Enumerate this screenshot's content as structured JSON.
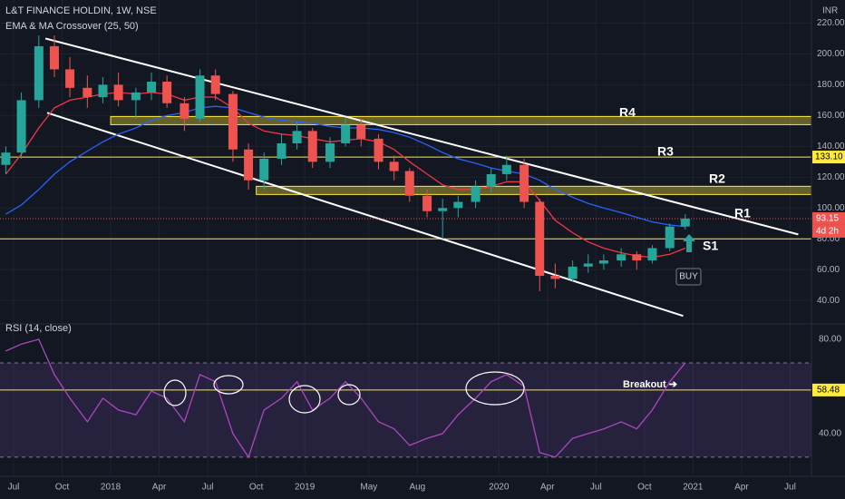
{
  "chart_data": {
    "type": "candlestick",
    "title": "L&T FINANCE HOLDIN, 1W, NSE",
    "subtitle": "EMA & MA Crossover (25, 50)",
    "currency": "INR",
    "xlim": [
      2017.43,
      2021.61
    ],
    "xticks": [
      {
        "value": 2017.5,
        "label": "Jul"
      },
      {
        "value": 2017.75,
        "label": "Oct"
      },
      {
        "value": 2018.0,
        "label": "2018"
      },
      {
        "value": 2018.25,
        "label": "Apr"
      },
      {
        "value": 2018.5,
        "label": "Jul"
      },
      {
        "value": 2018.75,
        "label": "Oct"
      },
      {
        "value": 2019.0,
        "label": "2019"
      },
      {
        "value": 2019.33,
        "label": "May"
      },
      {
        "value": 2019.58,
        "label": "Aug"
      },
      {
        "value": 2020.0,
        "label": "2020"
      },
      {
        "value": 2020.25,
        "label": "Apr"
      },
      {
        "value": 2020.5,
        "label": "Jul"
      },
      {
        "value": 2020.75,
        "label": "Oct"
      },
      {
        "value": 2021.0,
        "label": "2021"
      },
      {
        "value": 2021.25,
        "label": "Apr"
      },
      {
        "value": 2021.5,
        "label": "Jul"
      }
    ],
    "ylim": [
      26,
      235
    ],
    "yticks": [
      {
        "value": 40,
        "label": "40.00"
      },
      {
        "value": 60,
        "label": "60.00"
      },
      {
        "value": 80,
        "label": "80.00"
      },
      {
        "value": 100,
        "label": "100.00"
      },
      {
        "value": 120,
        "label": "120.00"
      },
      {
        "value": 140,
        "label": "140.00"
      },
      {
        "value": 160,
        "label": "160.00"
      },
      {
        "value": 180,
        "label": "180.00"
      },
      {
        "value": 200,
        "label": "200.00"
      },
      {
        "value": 220,
        "label": "220.00"
      }
    ],
    "up_color": "#26a69a",
    "down_color": "#ef5350",
    "x": [
      2017.46,
      2017.54,
      2017.63,
      2017.71,
      2017.79,
      2017.88,
      2017.96,
      2018.04,
      2018.13,
      2018.21,
      2018.29,
      2018.38,
      2018.46,
      2018.54,
      2018.63,
      2018.71,
      2018.79,
      2018.88,
      2018.96,
      2019.04,
      2019.13,
      2019.21,
      2019.29,
      2019.38,
      2019.46,
      2019.54,
      2019.63,
      2019.71,
      2019.79,
      2019.88,
      2019.96,
      2020.04,
      2020.13,
      2020.21,
      2020.29,
      2020.38,
      2020.46,
      2020.54,
      2020.63,
      2020.71,
      2020.79,
      2020.88,
      2020.96
    ],
    "open": [
      128,
      136,
      170,
      205,
      190,
      178,
      172,
      180,
      170,
      175,
      182,
      168,
      158,
      186,
      174,
      138,
      118,
      132,
      142,
      150,
      130,
      142,
      154,
      145,
      130,
      124,
      108,
      98,
      100,
      104,
      114,
      122,
      128,
      104,
      56,
      54,
      62,
      64,
      66,
      70,
      66,
      74,
      88
    ],
    "high": [
      140,
      175,
      212,
      212,
      198,
      186,
      185,
      188,
      178,
      188,
      186,
      172,
      190,
      190,
      176,
      142,
      136,
      148,
      156,
      152,
      146,
      158,
      158,
      148,
      134,
      126,
      112,
      106,
      108,
      118,
      126,
      134,
      132,
      106,
      64,
      66,
      70,
      70,
      74,
      72,
      76,
      90,
      96
    ],
    "low": [
      122,
      132,
      165,
      185,
      172,
      165,
      168,
      166,
      158,
      170,
      165,
      150,
      156,
      170,
      130,
      112,
      112,
      128,
      138,
      126,
      126,
      140,
      140,
      125,
      118,
      104,
      94,
      80,
      94,
      100,
      110,
      118,
      100,
      46,
      48,
      52,
      58,
      60,
      62,
      60,
      64,
      72,
      86
    ],
    "close": [
      136,
      170,
      205,
      190,
      178,
      172,
      180,
      170,
      175,
      182,
      168,
      158,
      186,
      174,
      138,
      118,
      132,
      142,
      150,
      130,
      142,
      154,
      145,
      130,
      124,
      108,
      98,
      100,
      104,
      114,
      122,
      128,
      104,
      56,
      54,
      62,
      64,
      66,
      70,
      66,
      74,
      88,
      93.15
    ],
    "series": [
      {
        "color": "#f23645",
        "values": [
          122,
          135,
          152,
          165,
          170,
          172,
          174,
          175,
          174,
          175,
          174,
          170,
          172,
          172,
          165,
          155,
          150,
          148,
          147,
          145,
          143,
          144,
          145,
          143,
          138,
          130,
          122,
          115,
          112,
          112,
          114,
          117,
          117,
          105,
          92,
          84,
          78,
          74,
          71,
          69,
          68,
          70,
          74
        ]
      },
      {
        "color": "#2962ff",
        "values": [
          96,
          102,
          112,
          122,
          130,
          137,
          143,
          148,
          152,
          157,
          160,
          162,
          165,
          166,
          165,
          162,
          159,
          157,
          156,
          155,
          153,
          152,
          152,
          151,
          149,
          146,
          141,
          136,
          132,
          129,
          126,
          124,
          122,
          118,
          112,
          107,
          103,
          100,
          97,
          94,
          91,
          89,
          88
        ]
      }
    ],
    "zones": [
      {
        "name": "R4",
        "x_start": 2018.0,
        "range": [
          154.1,
          159.4
        ]
      },
      {
        "name": "R2",
        "x_start": 2018.75,
        "range": [
          108.8,
          114.1
        ]
      }
    ],
    "price_levels": [
      {
        "name": "R3",
        "value": 133.1,
        "value_label": "133.10"
      },
      {
        "name": "S1",
        "value": 80
      }
    ],
    "channel": {
      "upper": {
        "name": "R1",
        "x": [
          2017.664,
          2021.542
        ],
        "y": [
          210,
          82.9
        ]
      },
      "lower": {
        "x": [
          2017.673,
          2020.949
        ],
        "y": [
          161.8,
          30
        ]
      }
    },
    "last_price": 93.15,
    "countdown": "4d 2h",
    "signal": "BUY",
    "rsi": {
      "title": "RSI (14, close)",
      "ylim": [
        23.8,
        84.6
      ],
      "yticks": [
        {
          "value": 40,
          "label": "40.00"
        },
        {
          "value": 80,
          "label": "80.00"
        }
      ],
      "bands": [
        30,
        70
      ],
      "level": 58.48,
      "annotation": "Breakout ➔",
      "color": "#ab47bc",
      "values": [
        75,
        78,
        80,
        65,
        55,
        45,
        55,
        50,
        48,
        58,
        55,
        45,
        65,
        62,
        40,
        30,
        50,
        55,
        62,
        50,
        55,
        62,
        55,
        45,
        42,
        35,
        38,
        40,
        48,
        55,
        62,
        65,
        60,
        32,
        30,
        38,
        40,
        42,
        45,
        42,
        50,
        62,
        70
      ]
    }
  }
}
